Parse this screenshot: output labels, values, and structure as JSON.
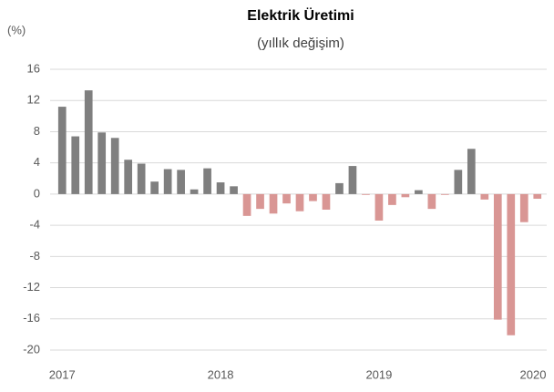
{
  "chart_data": {
    "type": "bar",
    "title": "Elektrik Üretimi",
    "subtitle": "(yıllık değişim)",
    "y_label": "(%)",
    "categories": [
      "2017",
      null,
      null,
      null,
      null,
      null,
      null,
      null,
      null,
      null,
      null,
      null,
      "2018",
      null,
      null,
      null,
      null,
      null,
      null,
      null,
      null,
      null,
      null,
      null,
      "2019",
      null,
      null,
      null,
      null,
      null,
      null,
      null,
      null,
      null,
      null,
      null,
      "2020"
    ],
    "values": [
      11.2,
      7.4,
      13.3,
      7.9,
      7.2,
      4.4,
      3.9,
      1.6,
      3.2,
      3.1,
      0.6,
      3.3,
      1.5,
      1.0,
      -2.8,
      -1.9,
      -2.5,
      -1.2,
      -2.2,
      -0.9,
      -2.0,
      1.4,
      3.6,
      -0.1,
      -3.4,
      -1.4,
      -0.4,
      0.5,
      -1.9,
      -0.1,
      3.1,
      5.8,
      -0.7,
      -16.1,
      -18.1,
      -3.6,
      -0.6
    ],
    "color_positive": "#7f7f7f",
    "color_negative": "#d99694",
    "ylim": [
      -20,
      16
    ],
    "yticks": [
      16,
      12,
      8,
      4,
      0,
      -4,
      -8,
      -12,
      -16,
      -20
    ],
    "grid": true
  }
}
